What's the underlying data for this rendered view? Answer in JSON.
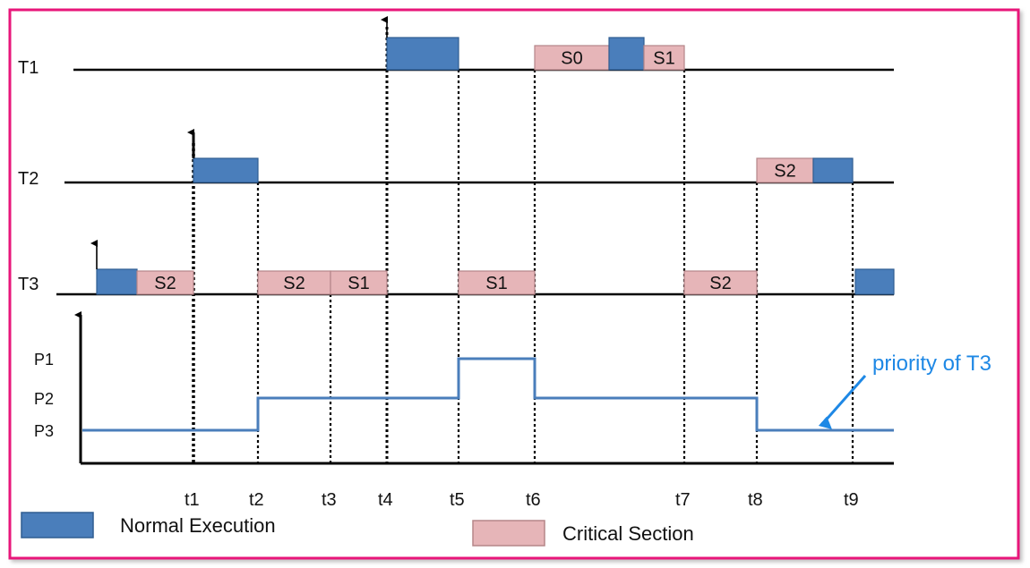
{
  "colors": {
    "frame": "#e8177a",
    "normal": "#4a7ebb",
    "normal_border": "#2f5d91",
    "critical": "#e6b5b8",
    "critical_border": "#b58689",
    "priority_line": "#4a7ebb",
    "annotation": "#1e88e5"
  },
  "tasks": [
    {
      "name": "T1"
    },
    {
      "name": "T2"
    },
    {
      "name": "T3"
    }
  ],
  "segments": [
    {
      "task": "T1",
      "kind": "normal",
      "start": "t4",
      "end": "t5",
      "label": ""
    },
    {
      "task": "T1",
      "kind": "critical",
      "start": "t6",
      "end": "t6a",
      "label": "S0"
    },
    {
      "task": "T1",
      "kind": "normal",
      "start": "t6a",
      "end": "t6b",
      "label": ""
    },
    {
      "task": "T1",
      "kind": "critical",
      "start": "t6b",
      "end": "t7",
      "label": "S1"
    },
    {
      "task": "T2",
      "kind": "normal",
      "start": "t1",
      "end": "t2",
      "label": ""
    },
    {
      "task": "T2",
      "kind": "critical",
      "start": "t8",
      "end": "t8a",
      "label": "S2"
    },
    {
      "task": "T2",
      "kind": "normal",
      "start": "t8a",
      "end": "t9",
      "label": ""
    },
    {
      "task": "T3",
      "kind": "normal",
      "start": "t0",
      "end": "t0a",
      "label": ""
    },
    {
      "task": "T3",
      "kind": "critical",
      "start": "t0a",
      "end": "t1",
      "label": "S2"
    },
    {
      "task": "T3",
      "kind": "critical",
      "start": "t2",
      "end": "t3",
      "label": "S2"
    },
    {
      "task": "T3",
      "kind": "critical",
      "start": "t3",
      "end": "t4",
      "label": "S1"
    },
    {
      "task": "T3",
      "kind": "critical",
      "start": "t5",
      "end": "t6",
      "label": "S1"
    },
    {
      "task": "T3",
      "kind": "critical",
      "start": "t7",
      "end": "t8",
      "label": "S2"
    },
    {
      "task": "T3",
      "kind": "normal",
      "start": "t9a",
      "end": "tend",
      "label": ""
    }
  ],
  "arrivals": [
    {
      "task": "T1",
      "time": "t4"
    },
    {
      "task": "T2",
      "time": "t1"
    },
    {
      "task": "T3",
      "time": "t0"
    }
  ],
  "time_labels": [
    {
      "key": "t1",
      "label": "t1"
    },
    {
      "key": "t2",
      "label": "t2"
    },
    {
      "key": "t3",
      "label": "t3"
    },
    {
      "key": "t4",
      "label": "t4"
    },
    {
      "key": "t5",
      "label": "t5"
    },
    {
      "key": "t6",
      "label": "t6"
    },
    {
      "key": "t7",
      "label": "t7"
    },
    {
      "key": "t8",
      "label": "t8"
    },
    {
      "key": "t9",
      "label": "t9"
    }
  ],
  "priority": {
    "levels": [
      "P1",
      "P2",
      "P3"
    ],
    "steps": [
      {
        "from": "tstart",
        "to": "t2",
        "level": "P3"
      },
      {
        "from": "t2",
        "to": "t5",
        "level": "P2"
      },
      {
        "from": "t5",
        "to": "t6",
        "level": "P1"
      },
      {
        "from": "t6",
        "to": "t8",
        "level": "P2"
      },
      {
        "from": "t8",
        "to": "tend",
        "level": "P3"
      }
    ],
    "annotation": "priority of T3"
  },
  "legend": {
    "normal": "Normal Execution",
    "critical": "Critical Section"
  }
}
